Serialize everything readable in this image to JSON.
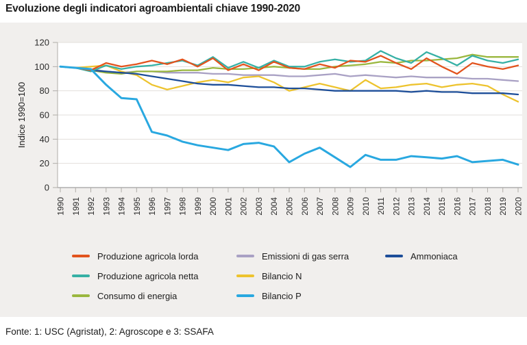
{
  "title": "Evoluzione degli indicatori agroambientali chiave 1990-2020",
  "footer": "Fonte: 1: USC (Agristat), 2: Agroscope e 3: SSAFA",
  "colors": {
    "panel_background": "#f1efed",
    "plot_background": "#ffffff",
    "gridline": "#e2dfdb",
    "zero_axis": "#8a8a8a",
    "axis_spine": "#b0aca8",
    "text": "#2b2b2b"
  },
  "chart_data": {
    "type": "line",
    "title": "Evoluzione degli indicatori agroambientali chiave 1990-2020",
    "xlabel": "",
    "ylabel": "Indice 1990=100",
    "ylim": [
      0,
      120
    ],
    "yticks": [
      0,
      20,
      40,
      60,
      80,
      100,
      120
    ],
    "grid": true,
    "legend_position": "bottom",
    "x": [
      1990,
      1991,
      1992,
      1993,
      1994,
      1995,
      1996,
      1997,
      1998,
      1999,
      2000,
      2001,
      2002,
      2003,
      2004,
      2005,
      2006,
      2007,
      2008,
      2009,
      2010,
      2011,
      2012,
      2013,
      2014,
      2015,
      2016,
      2017,
      2018,
      2019,
      2020
    ],
    "series": [
      {
        "name": "Produzione agricola lorda",
        "color": "#e2531d",
        "values": [
          100,
          99,
          97,
          103,
          100,
          102,
          105,
          102,
          106,
          100,
          107,
          97,
          102,
          97,
          104,
          99,
          98,
          102,
          99,
          105,
          104,
          109,
          103,
          98,
          107,
          100,
          94,
          103,
          100,
          98,
          101
        ]
      },
      {
        "name": "Produzione agricola netta",
        "color": "#36b0a5",
        "values": [
          100,
          99,
          96,
          101,
          98,
          100,
          101,
          103,
          105,
          101,
          108,
          99,
          104,
          99,
          105,
          100,
          100,
          104,
          106,
          104,
          105,
          113,
          107,
          103,
          112,
          107,
          101,
          109,
          105,
          103,
          106
        ]
      },
      {
        "name": "Consumo di energia",
        "color": "#9ab73e",
        "values": [
          100,
          99,
          97,
          95,
          94,
          96,
          96,
          96,
          97,
          97,
          99,
          98,
          98,
          99,
          100,
          99,
          98,
          98,
          100,
          101,
          102,
          104,
          103,
          105,
          105,
          106,
          107,
          110,
          108,
          108,
          108
        ]
      },
      {
        "name": "Emissioni di gas serra",
        "color": "#a9a1c4",
        "values": [
          100,
          99,
          98,
          96,
          95,
          96,
          96,
          95,
          95,
          95,
          94,
          94,
          93,
          93,
          93,
          92,
          92,
          93,
          94,
          92,
          93,
          92,
          91,
          92,
          91,
          91,
          91,
          90,
          90,
          89,
          88
        ]
      },
      {
        "name": "Bilancio N",
        "color": "#edc32e",
        "values": [
          100,
          99,
          100,
          101,
          96,
          93,
          85,
          81,
          84,
          87,
          89,
          87,
          91,
          92,
          87,
          80,
          83,
          86,
          83,
          80,
          89,
          82,
          83,
          85,
          86,
          83,
          85,
          86,
          84,
          77,
          71
        ]
      },
      {
        "name": "Bilancio P",
        "color": "#29a8e0",
        "values": [
          100,
          99,
          98,
          85,
          74,
          73,
          46,
          43,
          38,
          35,
          33,
          31,
          36,
          37,
          34,
          21,
          28,
          33,
          25,
          17,
          27,
          23,
          23,
          26,
          25,
          24,
          26,
          21,
          22,
          23,
          19
        ]
      },
      {
        "name": "Ammoniaca",
        "color": "#1d4e99",
        "values": [
          100,
          99,
          97,
          96,
          95,
          94,
          92,
          90,
          88,
          86,
          85,
          85,
          84,
          83,
          83,
          82,
          82,
          81,
          80,
          80,
          80,
          80,
          80,
          79,
          80,
          79,
          79,
          78,
          78,
          78,
          77
        ]
      }
    ]
  }
}
